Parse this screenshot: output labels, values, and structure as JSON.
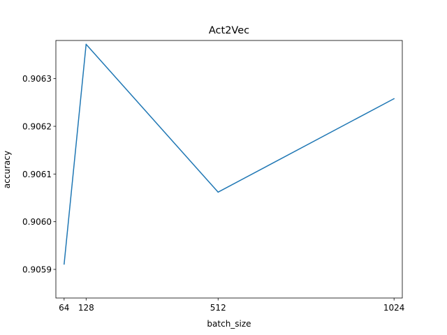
{
  "chart_data": {
    "type": "line",
    "title": "Act2Vec",
    "xlabel": "batch_size",
    "ylabel": "accuracy",
    "x": [
      64,
      128,
      512,
      1024
    ],
    "xticks": [
      "64",
      "128",
      "512",
      "1024"
    ],
    "yticks": [
      "0.9059",
      "0.9060",
      "0.9061",
      "0.9062",
      "0.9063"
    ],
    "ylim": [
      0.90584,
      0.90638
    ],
    "series": [
      {
        "values": [
          0.905911,
          0.906372,
          0.906062,
          0.906258
        ],
        "color": "#1f77b4"
      }
    ],
    "grid": false,
    "legend": "none"
  }
}
